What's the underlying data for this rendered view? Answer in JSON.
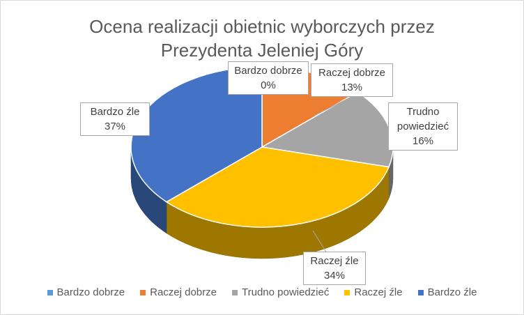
{
  "chart_data": {
    "type": "pie",
    "title_line1": "Ocena realizacji obietnic wyborczych przez",
    "title_line2": "Prezydenta Jeleniej Góry",
    "slices": [
      {
        "label": "Bardzo dobrze",
        "value": 0,
        "pct_text": "0%",
        "color": "#5b9bd5"
      },
      {
        "label": "Raczej dobrze",
        "value": 13,
        "pct_text": "13%",
        "color": "#ed7d31"
      },
      {
        "label": "Trudno powiedzieć",
        "value": 16,
        "pct_text": "16%",
        "color": "#a5a5a5"
      },
      {
        "label": "Raczej źle",
        "value": 34,
        "pct_text": "34%",
        "color": "#ffc000"
      },
      {
        "label": "Bardzo źle",
        "value": 37,
        "pct_text": "37%",
        "color": "#4472c4"
      }
    ],
    "legend_position": "bottom",
    "style": "3d"
  },
  "labels": {
    "trudno_line1": "Trudno",
    "trudno_line2": "powiedzieć"
  }
}
